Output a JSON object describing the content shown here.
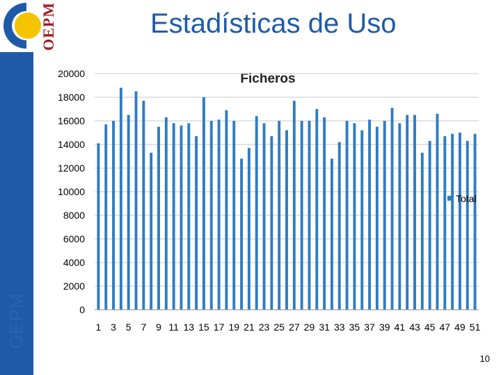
{
  "page": {
    "title": "Estadísticas de Uso",
    "brand": "OEPM",
    "logo_text": "OEPM",
    "page_number": "10"
  },
  "colors": {
    "accent": "#1f5aa8",
    "bar": "#2f7cc4",
    "logo_blue": "#1f5aa8",
    "logo_yellow": "#f5c400",
    "logo_red": "#a11d24"
  },
  "chart_data": {
    "type": "bar",
    "title": "Ficheros",
    "categories": [
      "1",
      "2",
      "3",
      "4",
      "5",
      "6",
      "7",
      "8",
      "9",
      "10",
      "11",
      "12",
      "13",
      "14",
      "15",
      "16",
      "17",
      "18",
      "19",
      "20",
      "21",
      "22",
      "23",
      "24",
      "25",
      "26",
      "27",
      "28",
      "29",
      "30",
      "31",
      "32",
      "33",
      "34",
      "35",
      "36",
      "37",
      "38",
      "39",
      "40",
      "41",
      "42",
      "43",
      "44",
      "45",
      "46",
      "47",
      "48",
      "49",
      "50",
      "51"
    ],
    "tick_labels": [
      "1",
      "3",
      "5",
      "7",
      "9",
      "11",
      "13",
      "15",
      "17",
      "19",
      "21",
      "23",
      "25",
      "27",
      "29",
      "31",
      "33",
      "35",
      "37",
      "39",
      "41",
      "43",
      "45",
      "47",
      "49",
      "51"
    ],
    "series": [
      {
        "name": "Total",
        "values": [
          14100,
          15700,
          16000,
          18800,
          16500,
          18500,
          17700,
          13300,
          15500,
          16300,
          15800,
          15600,
          15800,
          14700,
          18000,
          16000,
          16100,
          16900,
          16000,
          12800,
          13700,
          16400,
          15800,
          14700,
          16000,
          15200,
          17700,
          16000,
          16000,
          17000,
          16300,
          12800,
          14200,
          16000,
          15800,
          15200,
          16100,
          15500,
          16000,
          17100,
          15800,
          16500,
          16500,
          13300,
          14300,
          16600,
          14700,
          14900,
          15000,
          14300,
          14900
        ]
      }
    ],
    "y_ticks": [
      "0",
      "2000",
      "4000",
      "6000",
      "8000",
      "10000",
      "12000",
      "14000",
      "16000",
      "18000",
      "20000"
    ],
    "ylim": [
      0,
      20000
    ],
    "legend_position": "right",
    "grid": true
  }
}
